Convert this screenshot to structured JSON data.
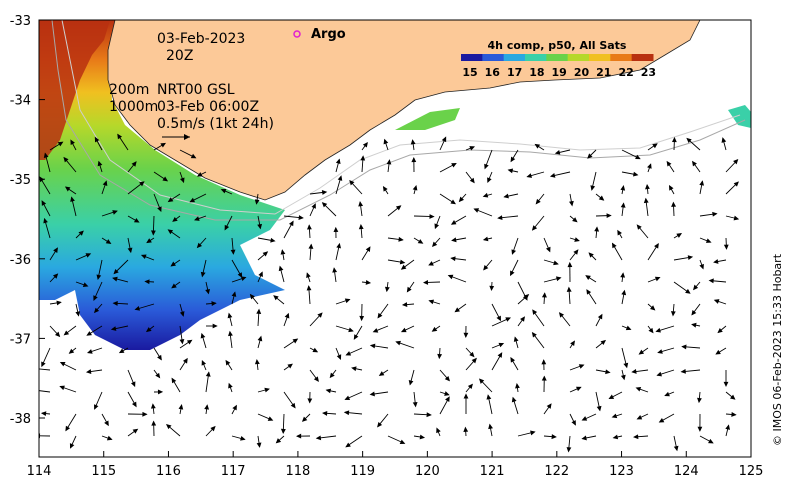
{
  "map": {
    "date_label": "03-Feb-2023",
    "time_label": "20Z",
    "contour_label_1": "200m",
    "contour_label_2": "1000m",
    "current_label_1": "NRT00 GSL",
    "current_label_2": "03-Feb 06:00Z",
    "scale_label": "0.5m/s (1kt 24h)",
    "legend_argo": "Argo",
    "colorbar_title": "4h comp, p50, All Sats",
    "colorbar_ticks": [
      "15",
      "16",
      "17",
      "18",
      "19",
      "20",
      "21",
      "22",
      "23"
    ],
    "colorbar_colors": [
      "#1a1aa0",
      "#2a5ad8",
      "#2aa8e0",
      "#3ad0a8",
      "#6ad24a",
      "#b6d82a",
      "#f0c020",
      "#e87a18",
      "#b83010"
    ],
    "credit": "© IMOS 06-Feb-2023 15:33 Hobart",
    "x_ticks": [
      "114",
      "115",
      "116",
      "117",
      "118",
      "119",
      "120",
      "121",
      "122",
      "123",
      "124",
      "125"
    ],
    "y_ticks": [
      "-33",
      "-34",
      "-35",
      "-36",
      "-37",
      "-38"
    ],
    "land_color": "#fcc998",
    "argo_marker_color": "#e020d0"
  }
}
